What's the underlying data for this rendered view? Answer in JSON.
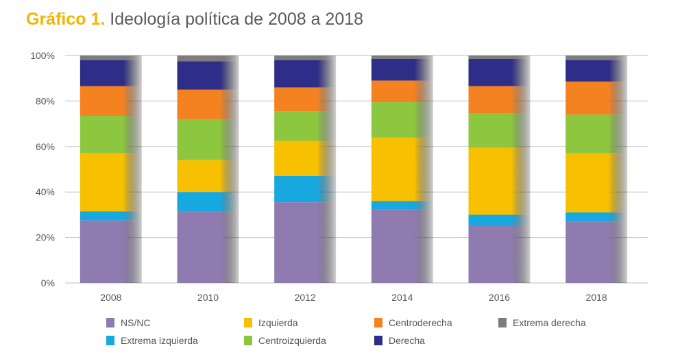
{
  "title": {
    "lead": "Gráfico 1.",
    "text": "Ideología política de 2008 a 2018"
  },
  "chart_data": {
    "type": "bar",
    "stacked": true,
    "categories": [
      "2008",
      "2010",
      "2012",
      "2014",
      "2016",
      "2018"
    ],
    "y_ticks": [
      "0%",
      "20%",
      "40%",
      "60%",
      "80%",
      "100%"
    ],
    "ylim": [
      0,
      100
    ],
    "grid": true,
    "legend_position": "bottom",
    "series": [
      {
        "name": "NS/NC",
        "color": "#8f7bb0",
        "values": [
          27.5,
          31.5,
          35.5,
          32.5,
          25,
          27
        ]
      },
      {
        "name": "Extrema izquierda",
        "color": "#17a8e0",
        "values": [
          4,
          8.5,
          11.5,
          3.5,
          5,
          4
        ]
      },
      {
        "name": "Izquierda",
        "color": "#f7c000",
        "values": [
          25.5,
          14,
          15.5,
          28,
          29.5,
          26
        ]
      },
      {
        "name": "Centroizquierda",
        "color": "#8dc63f",
        "values": [
          16.5,
          18,
          13,
          15.5,
          15,
          17
        ]
      },
      {
        "name": "Centroderecha",
        "color": "#f58220",
        "values": [
          13,
          13,
          10.5,
          9.5,
          12,
          14.5
        ]
      },
      {
        "name": "Derecha",
        "color": "#2e2d87",
        "values": [
          11.5,
          12.5,
          12,
          9.5,
          12,
          9.5
        ]
      },
      {
        "name": "Extrema derecha",
        "color": "#7d7d7d",
        "values": [
          2,
          2.5,
          2,
          1.5,
          1.5,
          2
        ]
      }
    ],
    "legend_order": [
      "NS/NC",
      "Izquierda",
      "Centroderecha",
      "Extrema derecha",
      "Extrema izquierda",
      "Centroizquierda",
      "Derecha"
    ]
  }
}
